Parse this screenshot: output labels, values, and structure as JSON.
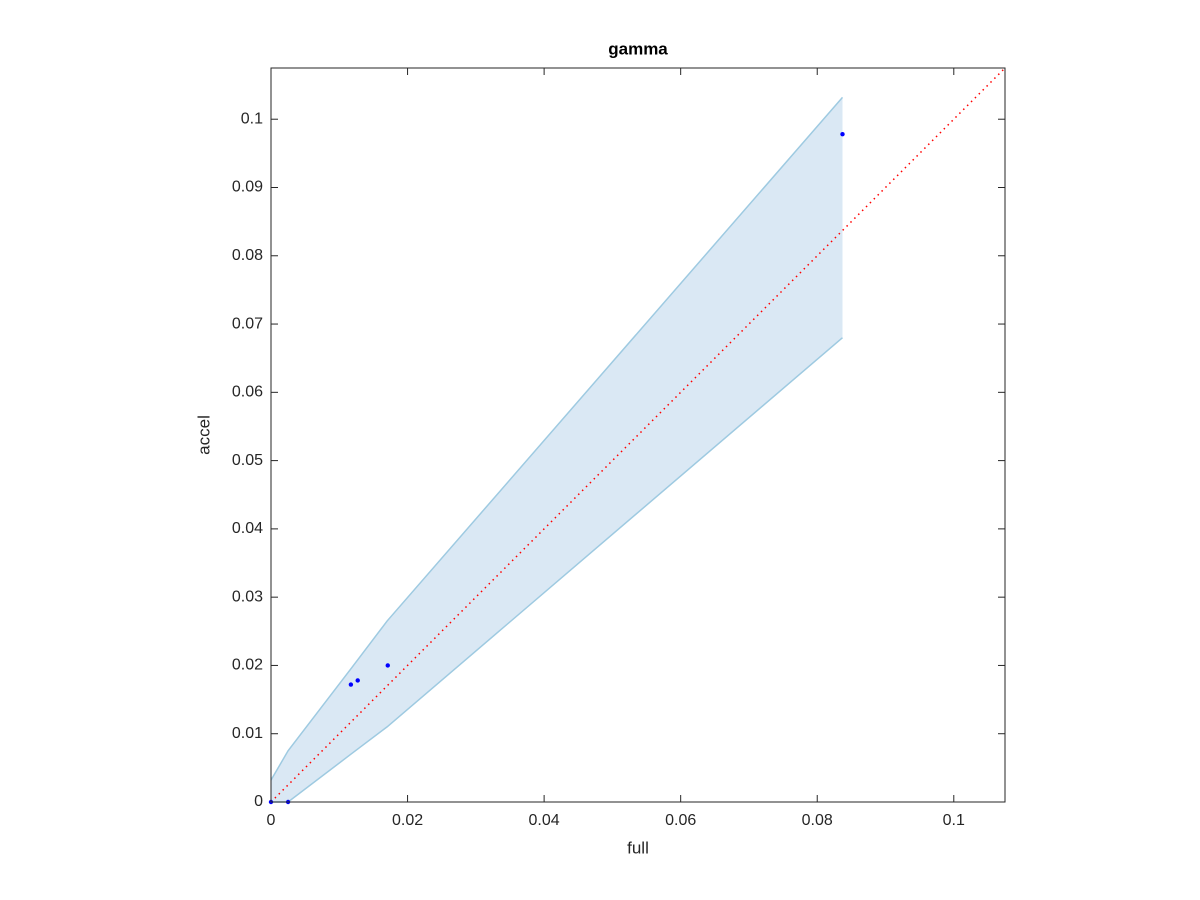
{
  "chart_data": {
    "type": "scatter",
    "title": "gamma",
    "x_label": "full",
    "y_label": "accel",
    "xlim": [
      0,
      0.1075
    ],
    "ylim": [
      0,
      0.1075
    ],
    "xticks": [
      0,
      0.02,
      0.04,
      0.06,
      0.08,
      0.1
    ],
    "yticks": [
      0,
      0.01,
      0.02,
      0.03,
      0.04,
      0.05,
      0.06,
      0.07,
      0.08,
      0.09,
      0.1
    ],
    "band": {
      "x": [
        0,
        0.0025,
        0.0117,
        0.017,
        0.0837
      ],
      "lower": [
        0,
        0,
        0.007,
        0.011,
        0.068
      ],
      "upper": [
        0.0032,
        0.0075,
        0.0195,
        0.0265,
        0.1032
      ],
      "color": "#9ecae1",
      "fill": "#dae8f4"
    },
    "reference_line": {
      "x": [
        0,
        0.1075
      ],
      "values": [
        0,
        0.1075
      ],
      "color": "#ff0000"
    },
    "points": {
      "x": [
        0,
        0.0025,
        0.0117,
        0.0127,
        0.0171,
        0.0837
      ],
      "values": [
        0,
        0,
        0.0172,
        0.0178,
        0.02,
        0.0978
      ],
      "color": "#0000ff"
    }
  }
}
